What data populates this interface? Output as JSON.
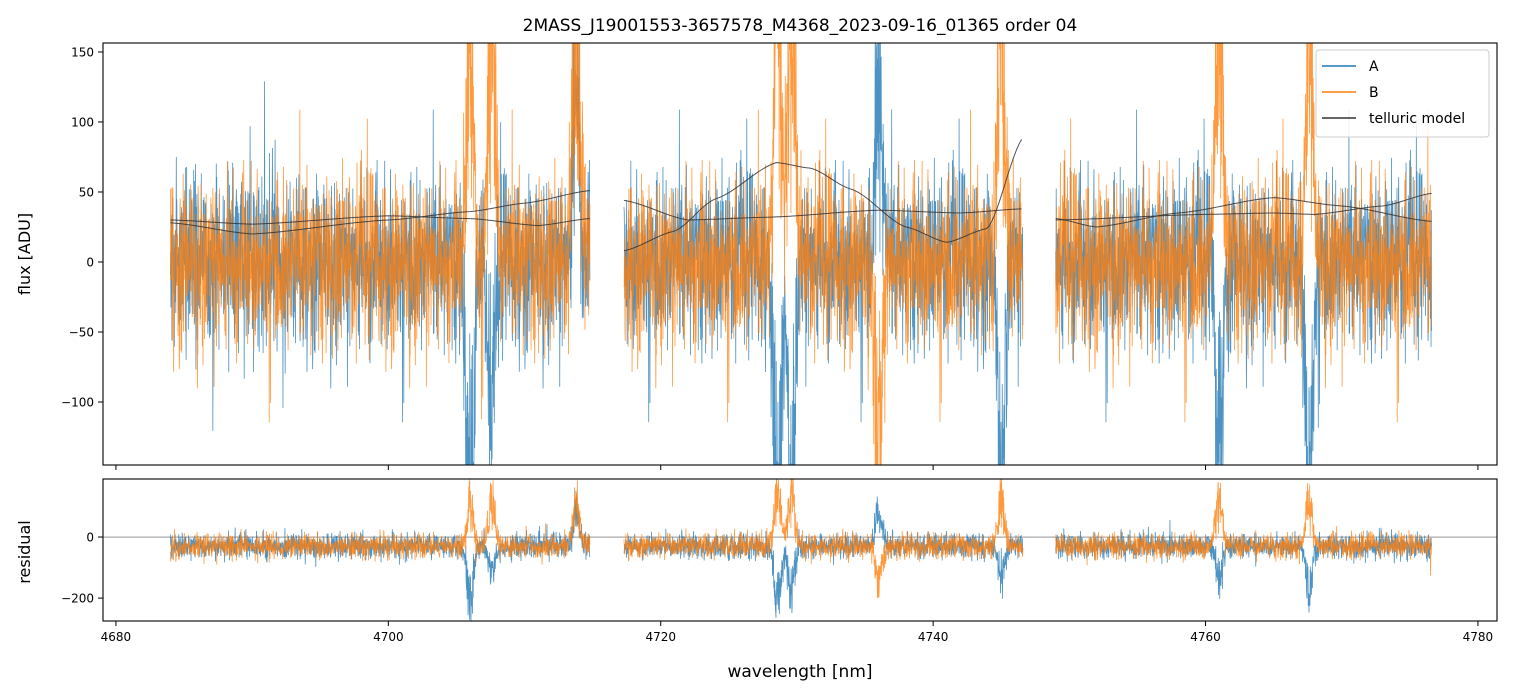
{
  "chart_data": [
    {
      "type": "line",
      "title": "2MASS_J19001553-3657578_M4368_2023-09-16_01365  order 04",
      "xlabel": "",
      "ylabel": "flux [ADU]",
      "xlim": [
        4679.05,
        4781.4
      ],
      "ylim": [
        -145,
        156.4
      ],
      "xticks": [
        4680,
        4700,
        4720,
        4740,
        4760,
        4780
      ],
      "yticks": [
        -100,
        -50,
        0,
        50,
        100,
        150
      ],
      "ytick_labels": [
        "−100",
        "−50",
        "0",
        "50",
        "100",
        "150"
      ],
      "legend": {
        "placement": "top-right",
        "entries": [
          "A",
          "B",
          "telluric model"
        ]
      },
      "segments": [
        [
          4684.0,
          4714.8
        ],
        [
          4717.3,
          4746.6
        ],
        [
          4749.0,
          4776.6
        ]
      ],
      "series": [
        {
          "name": "A",
          "color": "#1f77b4",
          "center": 0,
          "noise_sigma": 30
        },
        {
          "name": "B",
          "color": "#ff7f0e",
          "center": 0,
          "noise_sigma": 30
        }
      ],
      "telluric_features": [
        {
          "x": 4706.0,
          "A": -250,
          "B": 200
        },
        {
          "x": 4707.6,
          "A": -120,
          "B": 220
        },
        {
          "x": 4713.8,
          "A": 150,
          "B": 200
        },
        {
          "x": 4728.6,
          "A": -260,
          "B": 260
        },
        {
          "x": 4729.6,
          "A": -200,
          "B": 240
        },
        {
          "x": 4736.0,
          "A": 160,
          "B": -150
        },
        {
          "x": 4745.0,
          "A": -150,
          "B": 220
        },
        {
          "x": 4761.0,
          "A": -150,
          "B": 200
        },
        {
          "x": 4767.6,
          "A": -200,
          "B": 200
        }
      ],
      "telluric_model": {
        "name": "telluric model",
        "color": "#333333",
        "curves": [
          {
            "x": [
              4684,
              4690,
              4700,
              4706,
              4711,
              4714.8
            ],
            "y": [
              30,
              27,
              33,
              31,
              26,
              31
            ]
          },
          {
            "x": [
              4684,
              4690,
              4700,
              4706,
              4710,
              4714.8
            ],
            "y": [
              28,
              20,
              30,
              36,
              42,
              51
            ]
          },
          {
            "x": [
              4717.3,
              4721,
              4724,
              4728.5,
              4731,
              4734,
              4738,
              4741,
              4744,
              4746.6
            ],
            "y": [
              8,
              22,
              45,
              71,
              67,
              52,
              25,
              14,
              24,
              89
            ]
          },
          {
            "x": [
              4717.3,
              4722,
              4728,
              4736,
              4742,
              4746.6
            ],
            "y": [
              44,
              30,
              32,
              37,
              35,
              38
            ]
          },
          {
            "x": [
              4749,
              4752,
              4758,
              4765,
              4770,
              4776.6
            ],
            "y": [
              31,
              25,
              35,
              46,
              40,
              29
            ]
          },
          {
            "x": [
              4749,
              4760,
              4765,
              4768,
              4773,
              4776.6
            ],
            "y": [
              30,
              34,
              35,
              34,
              40,
              49
            ]
          }
        ]
      }
    },
    {
      "type": "line",
      "xlabel": "wavelength [nm]",
      "ylabel": "residual",
      "xlim": [
        4679.05,
        4781.4
      ],
      "ylim": [
        -275,
        190
      ],
      "xticks": [
        4680,
        4700,
        4720,
        4740,
        4760,
        4780
      ],
      "xtick_labels": [
        "4680",
        "4700",
        "4720",
        "4740",
        "4760",
        "4780"
      ],
      "yticks": [
        -200,
        0
      ],
      "ytick_labels": [
        "−200",
        "0"
      ],
      "reference_line": 0,
      "series": [
        {
          "name": "A",
          "color": "#1f77b4",
          "center": -30,
          "noise_sigma": 20
        },
        {
          "name": "B",
          "color": "#ff7f0e",
          "center": -30,
          "noise_sigma": 20
        }
      ]
    }
  ]
}
